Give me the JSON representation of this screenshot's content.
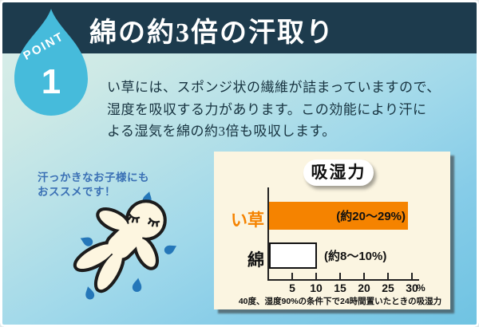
{
  "badge": {
    "label": "POINT",
    "number": "1"
  },
  "header": {
    "title": "綿の約3倍の汗取り"
  },
  "body": {
    "lines": [
      "い草には、スポンジ状の繊維が詰まっていますので、",
      "湿度を吸収する力があります。この効能により汗に",
      "よる湿気を綿の約3倍も吸収します。"
    ]
  },
  "note": {
    "lines": [
      "汗っかきなお子様にも",
      "おススメです！"
    ]
  },
  "illustration": {
    "name": "sweating-person-doodle",
    "body_color": "#fdf6e0",
    "outline_color": "#1c1c1c",
    "sweat_drop_color": "#2577b9"
  },
  "chart": {
    "title": "吸湿力",
    "unit_label": "%",
    "caption": "40度、湿度90%の条件下で24時間置いたときの吸湿力",
    "rows": [
      {
        "label": "い草",
        "annotation": "(約20～29%)"
      },
      {
        "label": "綿",
        "annotation": "(約8～10%)"
      }
    ]
  },
  "chart_data": {
    "type": "bar",
    "orientation": "horizontal",
    "title": "吸湿力",
    "categories": [
      "い草",
      "綿"
    ],
    "values": [
      29,
      10
    ],
    "value_ranges": [
      [
        20,
        29
      ],
      [
        8,
        10
      ]
    ],
    "annotations": [
      "(約20～29%)",
      "(約8～10%)"
    ],
    "bar_colors": [
      "#f58300",
      "#ffffff"
    ],
    "x_ticks": [
      5,
      10,
      15,
      20,
      25,
      30
    ],
    "xlim": [
      0,
      31
    ],
    "unit": "%",
    "grid": false,
    "caption": "40度、湿度90%の条件下で24時間置いたときの吸湿力"
  },
  "colors": {
    "header_bg": "#1d3b4d",
    "badge_drop": "#46bbdb",
    "accent_orange": "#f58300",
    "note_blue": "#3a70b5",
    "panel_bg": "#fbf5e1",
    "background_top": "#dcefe9",
    "background_bottom": "#6fc3e2"
  }
}
